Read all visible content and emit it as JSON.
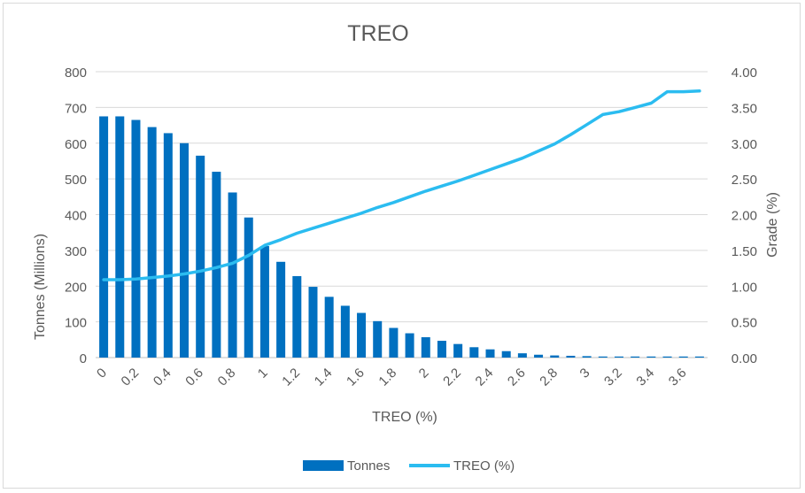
{
  "chart_data": {
    "type": "bar",
    "title": "TREO",
    "xlabel": "TREO (%)",
    "ylabel": "Tonnes (Millions)",
    "y2label": "Grade (%)",
    "ylim": [
      0,
      800
    ],
    "y_ticks": [
      "0",
      "100",
      "200",
      "300",
      "400",
      "500",
      "600",
      "700",
      "800"
    ],
    "y2lim": [
      0,
      4
    ],
    "y2_ticks": [
      "0.00",
      "0.50",
      "1.00",
      "1.50",
      "2.00",
      "2.50",
      "3.00",
      "3.50",
      "4.00"
    ],
    "grid": true,
    "legend_position": "bottom",
    "x": [
      0,
      0.1,
      0.2,
      0.3,
      0.4,
      0.5,
      0.6,
      0.7,
      0.8,
      0.9,
      1,
      1.1,
      1.2,
      1.3,
      1.4,
      1.5,
      1.6,
      1.7,
      1.8,
      1.9,
      2,
      2.1,
      2.2,
      2.3,
      2.4,
      2.5,
      2.6,
      2.7,
      2.8,
      2.9,
      3,
      3.1,
      3.2,
      3.3,
      3.4,
      3.5,
      3.6,
      3.7
    ],
    "x_tick_labels": [
      "0",
      "",
      "0.2",
      "",
      "0.4",
      "",
      "0.6",
      "",
      "0.8",
      "",
      "1",
      "",
      "1.2",
      "",
      "1.4",
      "",
      "1.6",
      "",
      "1.8",
      "",
      "2",
      "",
      "2.2",
      "",
      "2.4",
      "",
      "2.6",
      "",
      "2.8",
      "",
      "3",
      "",
      "3.2",
      "",
      "3.4",
      "",
      "3.6",
      ""
    ],
    "series": [
      {
        "name": "Tonnes",
        "type": "bar",
        "axis": "left",
        "color": "#0070c0",
        "values": [
          675,
          675,
          665,
          645,
          628,
          600,
          565,
          520,
          462,
          392,
          312,
          268,
          228,
          198,
          170,
          145,
          125,
          102,
          83,
          68,
          57,
          47,
          38,
          29,
          23,
          18,
          12,
          8,
          6,
          5,
          4,
          3,
          3,
          3,
          3,
          3,
          3,
          3
        ]
      },
      {
        "name": "TREO (%)",
        "type": "line",
        "axis": "right",
        "color": "#2bbcf0",
        "values": [
          1.09,
          1.09,
          1.1,
          1.12,
          1.14,
          1.17,
          1.21,
          1.26,
          1.32,
          1.43,
          1.57,
          1.65,
          1.74,
          1.81,
          1.88,
          1.95,
          2.02,
          2.1,
          2.17,
          2.25,
          2.33,
          2.4,
          2.47,
          2.55,
          2.63,
          2.71,
          2.79,
          2.89,
          2.99,
          3.12,
          3.26,
          3.4,
          3.44,
          3.5,
          3.56,
          3.72,
          3.72,
          3.73
        ]
      }
    ]
  }
}
